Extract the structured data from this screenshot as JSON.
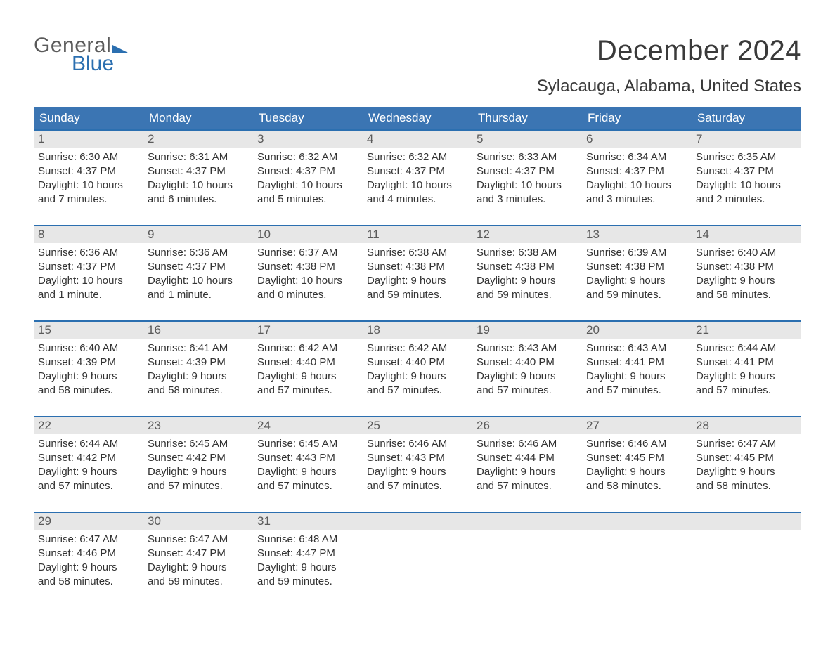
{
  "logo": {
    "line1": "General",
    "line2": "Blue"
  },
  "title": "December 2024",
  "location": "Sylacauga, Alabama, United States",
  "colors": {
    "header_blue": "#3b75b3",
    "border_blue": "#2b6fb0",
    "daynum_bg": "#e7e7e7",
    "text": "#333333",
    "daynum_text": "#5a5a5a",
    "logo_blue": "#2b6fb0",
    "background": "#ffffff"
  },
  "dow": [
    "Sunday",
    "Monday",
    "Tuesday",
    "Wednesday",
    "Thursday",
    "Friday",
    "Saturday"
  ],
  "weeks": [
    [
      {
        "n": "1",
        "sunrise": "Sunrise: 6:30 AM",
        "sunset": "Sunset: 4:37 PM",
        "d1": "Daylight: 10 hours",
        "d2": "and 7 minutes."
      },
      {
        "n": "2",
        "sunrise": "Sunrise: 6:31 AM",
        "sunset": "Sunset: 4:37 PM",
        "d1": "Daylight: 10 hours",
        "d2": "and 6 minutes."
      },
      {
        "n": "3",
        "sunrise": "Sunrise: 6:32 AM",
        "sunset": "Sunset: 4:37 PM",
        "d1": "Daylight: 10 hours",
        "d2": "and 5 minutes."
      },
      {
        "n": "4",
        "sunrise": "Sunrise: 6:32 AM",
        "sunset": "Sunset: 4:37 PM",
        "d1": "Daylight: 10 hours",
        "d2": "and 4 minutes."
      },
      {
        "n": "5",
        "sunrise": "Sunrise: 6:33 AM",
        "sunset": "Sunset: 4:37 PM",
        "d1": "Daylight: 10 hours",
        "d2": "and 3 minutes."
      },
      {
        "n": "6",
        "sunrise": "Sunrise: 6:34 AM",
        "sunset": "Sunset: 4:37 PM",
        "d1": "Daylight: 10 hours",
        "d2": "and 3 minutes."
      },
      {
        "n": "7",
        "sunrise": "Sunrise: 6:35 AM",
        "sunset": "Sunset: 4:37 PM",
        "d1": "Daylight: 10 hours",
        "d2": "and 2 minutes."
      }
    ],
    [
      {
        "n": "8",
        "sunrise": "Sunrise: 6:36 AM",
        "sunset": "Sunset: 4:37 PM",
        "d1": "Daylight: 10 hours",
        "d2": "and 1 minute."
      },
      {
        "n": "9",
        "sunrise": "Sunrise: 6:36 AM",
        "sunset": "Sunset: 4:37 PM",
        "d1": "Daylight: 10 hours",
        "d2": "and 1 minute."
      },
      {
        "n": "10",
        "sunrise": "Sunrise: 6:37 AM",
        "sunset": "Sunset: 4:38 PM",
        "d1": "Daylight: 10 hours",
        "d2": "and 0 minutes."
      },
      {
        "n": "11",
        "sunrise": "Sunrise: 6:38 AM",
        "sunset": "Sunset: 4:38 PM",
        "d1": "Daylight: 9 hours",
        "d2": "and 59 minutes."
      },
      {
        "n": "12",
        "sunrise": "Sunrise: 6:38 AM",
        "sunset": "Sunset: 4:38 PM",
        "d1": "Daylight: 9 hours",
        "d2": "and 59 minutes."
      },
      {
        "n": "13",
        "sunrise": "Sunrise: 6:39 AM",
        "sunset": "Sunset: 4:38 PM",
        "d1": "Daylight: 9 hours",
        "d2": "and 59 minutes."
      },
      {
        "n": "14",
        "sunrise": "Sunrise: 6:40 AM",
        "sunset": "Sunset: 4:38 PM",
        "d1": "Daylight: 9 hours",
        "d2": "and 58 minutes."
      }
    ],
    [
      {
        "n": "15",
        "sunrise": "Sunrise: 6:40 AM",
        "sunset": "Sunset: 4:39 PM",
        "d1": "Daylight: 9 hours",
        "d2": "and 58 minutes."
      },
      {
        "n": "16",
        "sunrise": "Sunrise: 6:41 AM",
        "sunset": "Sunset: 4:39 PM",
        "d1": "Daylight: 9 hours",
        "d2": "and 58 minutes."
      },
      {
        "n": "17",
        "sunrise": "Sunrise: 6:42 AM",
        "sunset": "Sunset: 4:40 PM",
        "d1": "Daylight: 9 hours",
        "d2": "and 57 minutes."
      },
      {
        "n": "18",
        "sunrise": "Sunrise: 6:42 AM",
        "sunset": "Sunset: 4:40 PM",
        "d1": "Daylight: 9 hours",
        "d2": "and 57 minutes."
      },
      {
        "n": "19",
        "sunrise": "Sunrise: 6:43 AM",
        "sunset": "Sunset: 4:40 PM",
        "d1": "Daylight: 9 hours",
        "d2": "and 57 minutes."
      },
      {
        "n": "20",
        "sunrise": "Sunrise: 6:43 AM",
        "sunset": "Sunset: 4:41 PM",
        "d1": "Daylight: 9 hours",
        "d2": "and 57 minutes."
      },
      {
        "n": "21",
        "sunrise": "Sunrise: 6:44 AM",
        "sunset": "Sunset: 4:41 PM",
        "d1": "Daylight: 9 hours",
        "d2": "and 57 minutes."
      }
    ],
    [
      {
        "n": "22",
        "sunrise": "Sunrise: 6:44 AM",
        "sunset": "Sunset: 4:42 PM",
        "d1": "Daylight: 9 hours",
        "d2": "and 57 minutes."
      },
      {
        "n": "23",
        "sunrise": "Sunrise: 6:45 AM",
        "sunset": "Sunset: 4:42 PM",
        "d1": "Daylight: 9 hours",
        "d2": "and 57 minutes."
      },
      {
        "n": "24",
        "sunrise": "Sunrise: 6:45 AM",
        "sunset": "Sunset: 4:43 PM",
        "d1": "Daylight: 9 hours",
        "d2": "and 57 minutes."
      },
      {
        "n": "25",
        "sunrise": "Sunrise: 6:46 AM",
        "sunset": "Sunset: 4:43 PM",
        "d1": "Daylight: 9 hours",
        "d2": "and 57 minutes."
      },
      {
        "n": "26",
        "sunrise": "Sunrise: 6:46 AM",
        "sunset": "Sunset: 4:44 PM",
        "d1": "Daylight: 9 hours",
        "d2": "and 57 minutes."
      },
      {
        "n": "27",
        "sunrise": "Sunrise: 6:46 AM",
        "sunset": "Sunset: 4:45 PM",
        "d1": "Daylight: 9 hours",
        "d2": "and 58 minutes."
      },
      {
        "n": "28",
        "sunrise": "Sunrise: 6:47 AM",
        "sunset": "Sunset: 4:45 PM",
        "d1": "Daylight: 9 hours",
        "d2": "and 58 minutes."
      }
    ],
    [
      {
        "n": "29",
        "sunrise": "Sunrise: 6:47 AM",
        "sunset": "Sunset: 4:46 PM",
        "d1": "Daylight: 9 hours",
        "d2": "and 58 minutes."
      },
      {
        "n": "30",
        "sunrise": "Sunrise: 6:47 AM",
        "sunset": "Sunset: 4:47 PM",
        "d1": "Daylight: 9 hours",
        "d2": "and 59 minutes."
      },
      {
        "n": "31",
        "sunrise": "Sunrise: 6:48 AM",
        "sunset": "Sunset: 4:47 PM",
        "d1": "Daylight: 9 hours",
        "d2": "and 59 minutes."
      },
      null,
      null,
      null,
      null
    ]
  ]
}
